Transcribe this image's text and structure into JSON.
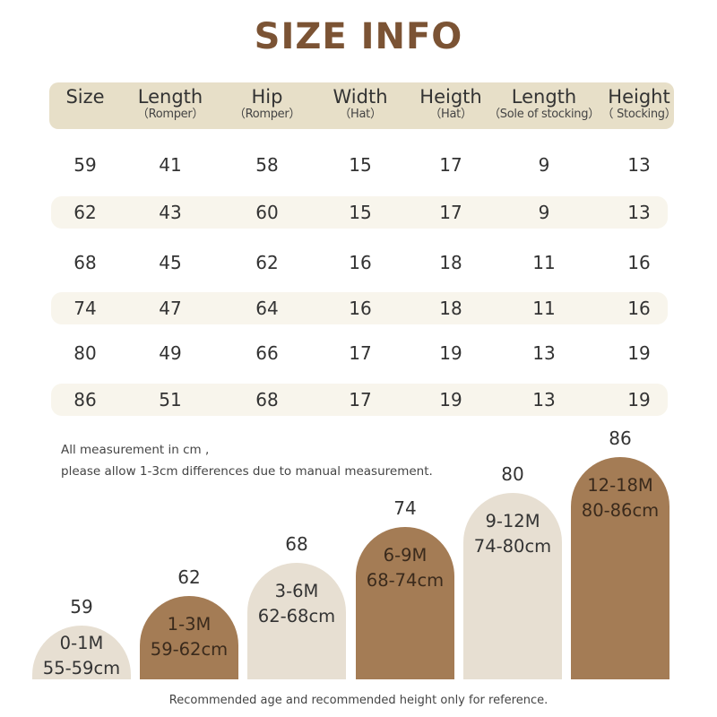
{
  "title": "SIZE INFO",
  "colors": {
    "title": "#7b5334",
    "header_bg": "#e7dfc8",
    "row_shade": "#f8f5ec",
    "bar_light": "#e7dfd2",
    "bar_dark": "#a47c55"
  },
  "table": {
    "headers": [
      {
        "main": "Size",
        "sub": ""
      },
      {
        "main": "Length",
        "sub": "（Romper）"
      },
      {
        "main": "Hip",
        "sub": "（Romper）"
      },
      {
        "main": "Width",
        "sub": "（Hat）"
      },
      {
        "main": "Heigth",
        "sub": "（Hat）"
      },
      {
        "main": "Length",
        "sub": "（Sole of stocking）"
      },
      {
        "main": "Height",
        "sub": "（ Stocking）"
      }
    ],
    "rows": [
      [
        "59",
        "41",
        "58",
        "15",
        "17",
        "9",
        "13"
      ],
      [
        "62",
        "43",
        "60",
        "15",
        "17",
        "9",
        "13"
      ],
      [
        "68",
        "45",
        "62",
        "16",
        "18",
        "11",
        "16"
      ],
      [
        "74",
        "47",
        "64",
        "16",
        "18",
        "11",
        "16"
      ],
      [
        "80",
        "49",
        "66",
        "17",
        "19",
        "13",
        "19"
      ],
      [
        "86",
        "51",
        "68",
        "17",
        "19",
        "13",
        "19"
      ]
    ]
  },
  "notes": {
    "line1": "All measurement in cm ,",
    "line2": "please allow 1-3cm differences due to manual measurement."
  },
  "bars": [
    {
      "size": "59",
      "age": "0-1M",
      "height": "55-59cm",
      "tone": "light"
    },
    {
      "size": "62",
      "age": "1-3M",
      "height": "59-62cm",
      "tone": "dark"
    },
    {
      "size": "68",
      "age": "3-6M",
      "height": "62-68cm",
      "tone": "light"
    },
    {
      "size": "74",
      "age": "6-9M",
      "height": "68-74cm",
      "tone": "dark"
    },
    {
      "size": "80",
      "age": "9-12M",
      "height": "74-80cm",
      "tone": "light"
    },
    {
      "size": "86",
      "age": "12-18M",
      "height": "80-86cm",
      "tone": "dark"
    }
  ],
  "footer": "Recommended age and recommended height only for reference."
}
